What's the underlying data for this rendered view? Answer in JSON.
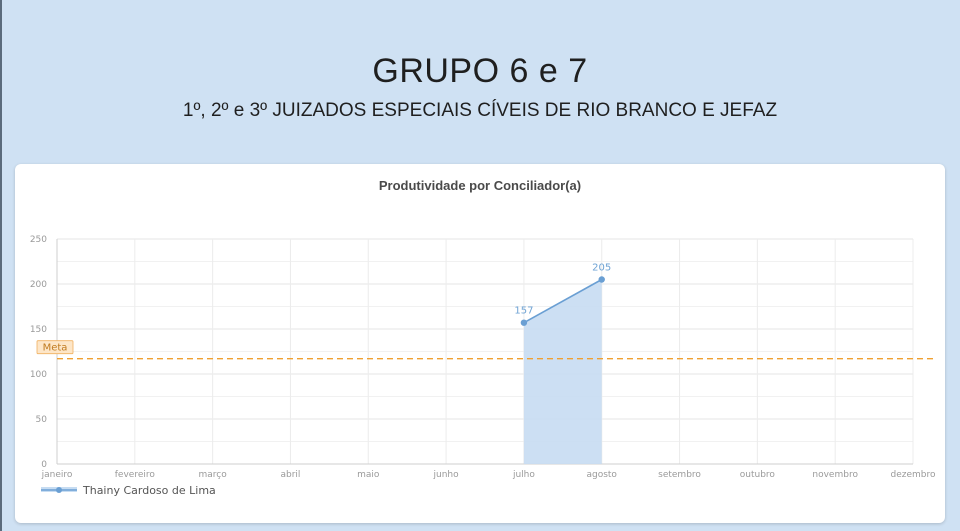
{
  "slide": {
    "title": "GRUPO 6 e 7",
    "subtitle": "1º, 2º e 3º JUIZADOS ESPECIAIS CÍVEIS DE RIO BRANCO E JEFAZ"
  },
  "chart_data": {
    "type": "line",
    "title": "Produtividade por Conciliador(a)",
    "xlabel": "",
    "ylabel": "",
    "categories": [
      "janeiro",
      "fevereiro",
      "março",
      "abril",
      "maio",
      "junho",
      "julho",
      "agosto",
      "setembro",
      "outubro",
      "novembro",
      "dezembro"
    ],
    "series": [
      {
        "name": "Thainy Cardoso de Lima",
        "values": [
          null,
          null,
          null,
          null,
          null,
          null,
          157,
          205,
          null,
          null,
          null,
          null
        ],
        "area_fill": true,
        "color": "#6a9fd3",
        "fill_color": "#c6dcf2"
      }
    ],
    "ylim": [
      0,
      250
    ],
    "yticks": [
      0,
      50,
      100,
      150,
      200,
      250
    ],
    "grid": true,
    "legend": "bottom-left",
    "reference_line": {
      "label": "Meta",
      "value": 117,
      "color": "#f0a030",
      "style": "dashed"
    }
  }
}
